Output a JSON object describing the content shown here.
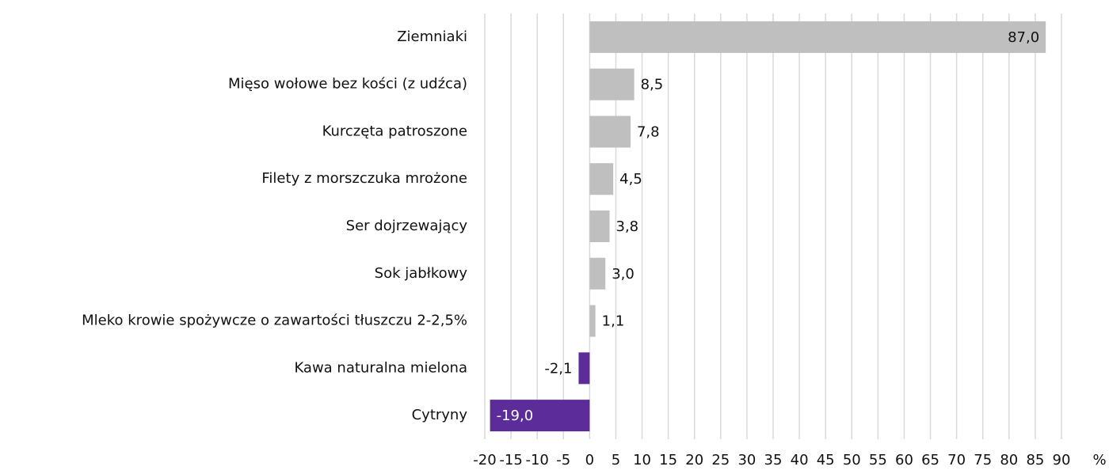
{
  "chart_data": {
    "type": "bar",
    "orientation": "horizontal",
    "categories": [
      "Ziemniaki",
      "Mięso wołowe bez kości (z udźca)",
      "Kurczęta patroszone",
      "Filety z morszczuka mrożone",
      "Ser dojrzewający",
      "Sok jabłkowy",
      "Mleko krowie spożywcze o zawartości tłuszczu 2-2,5%",
      "Kawa naturalna mielona",
      "Cytryny"
    ],
    "values": [
      87.0,
      8.5,
      7.8,
      4.5,
      3.8,
      3.0,
      1.1,
      -2.1,
      -19.0
    ],
    "value_labels": [
      "87,0",
      "8,5",
      "7,8",
      "4,5",
      "3,8",
      "3,0",
      "1,1",
      "-2,1",
      "-19,0"
    ],
    "colors": [
      "#bfbfbf",
      "#bfbfbf",
      "#bfbfbf",
      "#bfbfbf",
      "#bfbfbf",
      "#bfbfbf",
      "#bfbfbf",
      "#5b2c9a",
      "#5b2c9a"
    ],
    "x_label": "%",
    "xlim": [
      -20,
      90
    ],
    "xticks": [
      -20,
      -15,
      -10,
      -5,
      0,
      5,
      10,
      15,
      20,
      25,
      30,
      35,
      40,
      45,
      50,
      55,
      60,
      65,
      70,
      75,
      80,
      85,
      90
    ],
    "grid": true
  }
}
